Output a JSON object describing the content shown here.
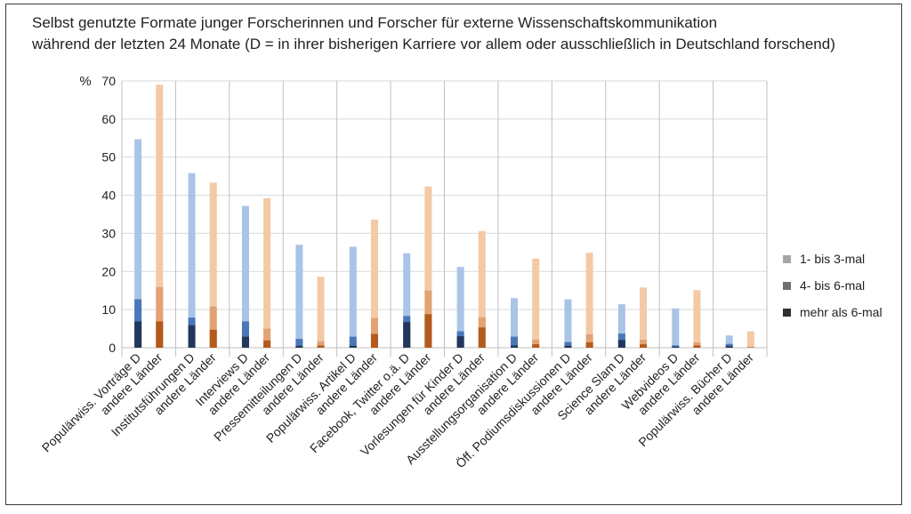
{
  "chart_data": {
    "type": "bar",
    "stacked": true,
    "title_lines": [
      "Selbst genutzte Formate junger Forscherinnen und Forscher für externe Wissenschaftskommunikation",
      "während der letzten 24 Monate (D = in ihrer bisherigen Karriere vor allem oder ausschließlich in Deutschland forschend)"
    ],
    "ylabel": "%",
    "ylim": [
      0,
      70
    ],
    "yticks": [
      0,
      10,
      20,
      30,
      40,
      50,
      60,
      70
    ],
    "grid": true,
    "legend_position": "right",
    "legend": [
      "1- bis 3-mal",
      "4- bis 6-mal",
      "mehr als 6-mal"
    ],
    "legend_colors": [
      "#a6a6a6",
      "#707070",
      "#2f2f2f"
    ],
    "colors": {
      "D": [
        "#a9c4e6",
        "#4a77b8",
        "#23375c"
      ],
      "andere": [
        "#f4c9a5",
        "#e2a273",
        "#b35a1c"
      ]
    },
    "groups": [
      {
        "D_label": "Populärwiss. Vorträge D",
        "A_label": "andere Länder",
        "D": [
          54.7,
          12.7,
          6.9
        ],
        "A": [
          69.0,
          15.9,
          6.9
        ]
      },
      {
        "D_label": "Institutsführungen D",
        "A_label": "andere Länder",
        "D": [
          45.8,
          7.9,
          5.9
        ],
        "A": [
          43.3,
          10.8,
          4.7
        ]
      },
      {
        "D_label": "Interviews D",
        "A_label": "andere Länder",
        "D": [
          37.2,
          6.9,
          2.9
        ],
        "A": [
          39.2,
          5.0,
          1.9
        ]
      },
      {
        "D_label": "Pressemitteilungen D",
        "A_label": "andere Länder",
        "D": [
          27.0,
          2.3,
          0.5
        ],
        "A": [
          18.6,
          1.7,
          0.6
        ]
      },
      {
        "D_label": "Populärwiss. Artikel D",
        "A_label": "andere Länder",
        "D": [
          26.5,
          2.9,
          0.5
        ],
        "A": [
          33.6,
          7.8,
          3.6
        ]
      },
      {
        "D_label": "Facebook, Twitter o.ä. D",
        "A_label": "andere Länder",
        "D": [
          24.8,
          8.3,
          6.7
        ],
        "A": [
          42.3,
          15.0,
          8.8
        ]
      },
      {
        "D_label": "Vorlesungen für Kinder D",
        "A_label": "andere Länder",
        "D": [
          21.2,
          4.3,
          3.0
        ],
        "A": [
          30.6,
          8.0,
          5.3
        ]
      },
      {
        "D_label": "Ausstellungsorganisation D",
        "A_label": "andere Länder",
        "D": [
          13.0,
          2.9,
          0.6
        ],
        "A": [
          23.4,
          2.1,
          0.9
        ]
      },
      {
        "D_label": "Öff. Podiumsdiskussionen D",
        "A_label": "andere Länder",
        "D": [
          12.7,
          1.5,
          0.5
        ],
        "A": [
          24.9,
          3.5,
          1.4
        ]
      },
      {
        "D_label": "Science Slam D",
        "A_label": "andere Länder",
        "D": [
          11.4,
          3.7,
          2.0
        ],
        "A": [
          15.8,
          2.1,
          0.9
        ]
      },
      {
        "D_label": "Webvideos D",
        "A_label": "andere Länder",
        "D": [
          10.3,
          0.6,
          0.3
        ],
        "A": [
          15.1,
          1.4,
          0.6
        ]
      },
      {
        "D_label": "Populärwiss. Bücher D",
        "A_label": "andere Länder",
        "D": [
          3.2,
          1.0,
          0.4
        ],
        "A": [
          4.3,
          0.2,
          0.1
        ]
      }
    ]
  }
}
